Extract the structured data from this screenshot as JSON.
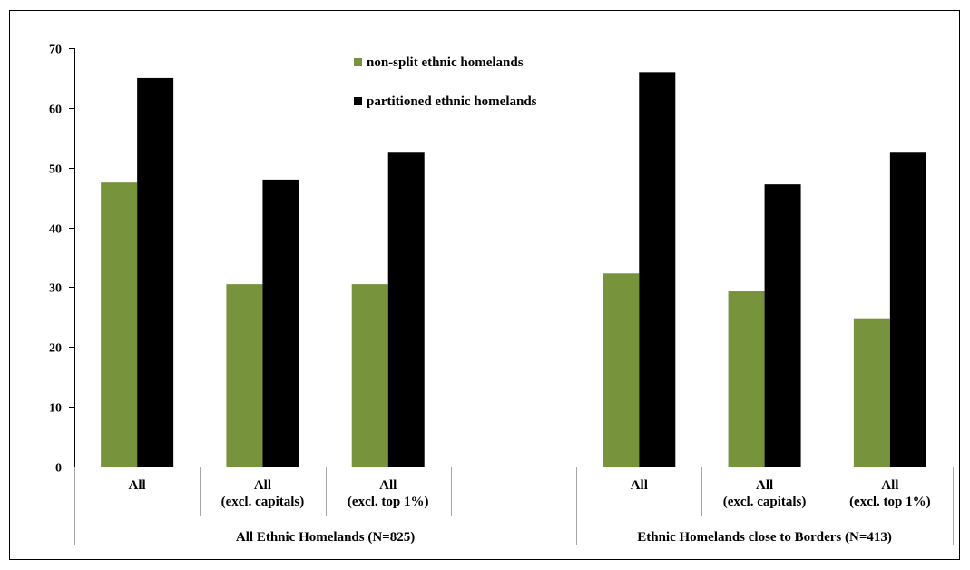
{
  "chart_data": {
    "type": "bar",
    "title": "",
    "xlabel": "",
    "ylabel": "",
    "ylim": [
      0,
      70
    ],
    "yticks": [
      0,
      10,
      20,
      30,
      40,
      50,
      60,
      70
    ],
    "grid": false,
    "legend_position": "top-center",
    "categories": [
      {
        "lines": [
          "All"
        ]
      },
      {
        "lines": [
          "All",
          "(excl. capitals)"
        ]
      },
      {
        "lines": [
          "All",
          "(excl. top 1%)"
        ]
      },
      {
        "lines": []
      },
      {
        "lines": [
          "All"
        ]
      },
      {
        "lines": [
          "All",
          "(excl. capitals)"
        ]
      },
      {
        "lines": [
          "All",
          "(excl. top 1%)"
        ]
      }
    ],
    "groups": [
      {
        "label": "All Ethnic Homelands (N=825)"
      },
      {
        "label": "Ethnic Homelands close to Borders (N=413)"
      }
    ],
    "series": [
      {
        "name": "non-split ethnic homelands",
        "color": "#77933c",
        "values": [
          47.5,
          30.5,
          30.5,
          null,
          32.3,
          29.3,
          24.8
        ]
      },
      {
        "name": "partitioned ethnic homelands",
        "color": "#000000",
        "values": [
          65.0,
          48.0,
          52.5,
          null,
          66.0,
          47.2,
          52.5
        ]
      }
    ]
  }
}
